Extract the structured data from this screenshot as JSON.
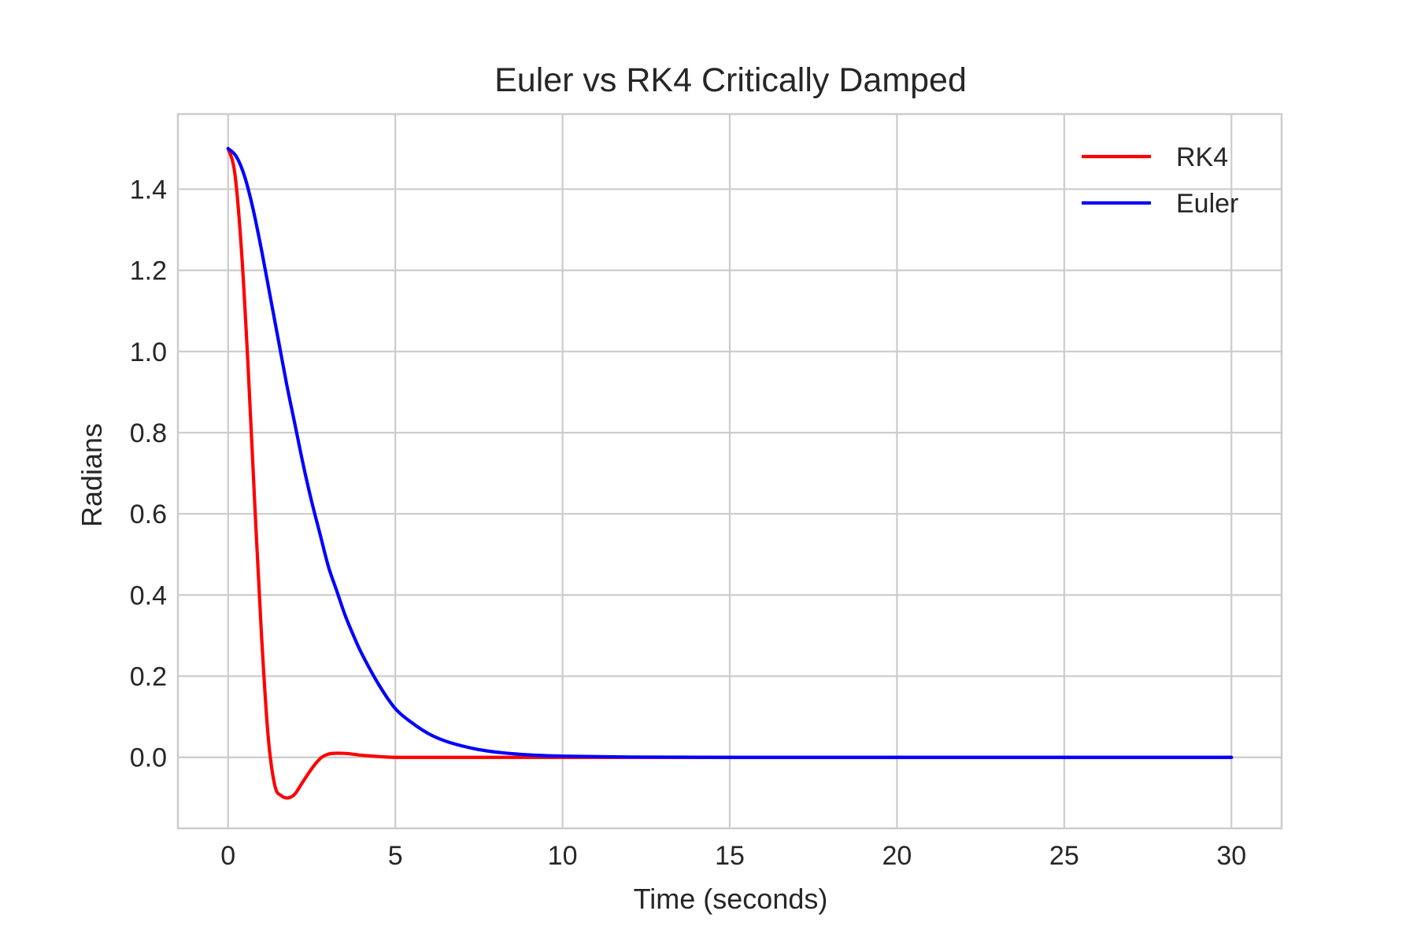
{
  "chart_data": {
    "type": "line",
    "title": "Euler vs RK4 Critically Damped",
    "xlabel": "Time (seconds)",
    "ylabel": "Radians",
    "xlim": [
      -1.5,
      31.5
    ],
    "ylim": [
      -0.175,
      1.585
    ],
    "xticks": [
      0,
      5,
      10,
      15,
      20,
      25,
      30
    ],
    "yticks": [
      0.0,
      0.2,
      0.4,
      0.6,
      0.8,
      1.0,
      1.2,
      1.4
    ],
    "xtick_labels": [
      "0",
      "5",
      "10",
      "15",
      "20",
      "25",
      "30"
    ],
    "ytick_labels": [
      "0.0",
      "0.2",
      "0.4",
      "0.6",
      "0.8",
      "1.0",
      "1.2",
      "1.4"
    ],
    "grid": true,
    "legend_position": "top-right",
    "series": [
      {
        "name": "RK4",
        "color": "#ff0000",
        "x": [
          0,
          0.2,
          0.4,
          0.6,
          0.8,
          1.0,
          1.2,
          1.4,
          1.6,
          1.8,
          2.0,
          2.2,
          2.4,
          2.6,
          2.8,
          3.0,
          3.2,
          3.4,
          3.6,
          3.8,
          4.0,
          4.5,
          5.0,
          6.0,
          8.0,
          10.0,
          15.0,
          20.0,
          25.0,
          30.0
        ],
        "y": [
          1.5,
          1.44,
          1.25,
          0.96,
          0.62,
          0.3,
          0.05,
          -0.07,
          -0.095,
          -0.1,
          -0.09,
          -0.065,
          -0.04,
          -0.017,
          0.0,
          0.008,
          0.01,
          0.01,
          0.009,
          0.007,
          0.005,
          0.002,
          0.0,
          0.0,
          0.0,
          0.0,
          0.0,
          0.0,
          0.0,
          0.0
        ]
      },
      {
        "name": "Euler",
        "color": "#0000ff",
        "x": [
          0,
          0.25,
          0.5,
          0.75,
          1.0,
          1.25,
          1.5,
          1.75,
          2.0,
          2.25,
          2.5,
          2.75,
          3.0,
          3.25,
          3.5,
          3.75,
          4.0,
          4.5,
          5.0,
          5.5,
          6.0,
          6.5,
          7.0,
          7.5,
          8.0,
          9.0,
          10.0,
          12.0,
          15.0,
          20.0,
          25.0,
          30.0
        ],
        "y": [
          1.5,
          1.48,
          1.43,
          1.35,
          1.25,
          1.14,
          1.03,
          0.92,
          0.82,
          0.72,
          0.63,
          0.55,
          0.47,
          0.41,
          0.35,
          0.3,
          0.255,
          0.18,
          0.12,
          0.085,
          0.058,
          0.04,
          0.028,
          0.019,
          0.013,
          0.006,
          0.003,
          0.0008,
          0.0,
          0.0,
          0.0,
          0.0
        ]
      }
    ]
  }
}
